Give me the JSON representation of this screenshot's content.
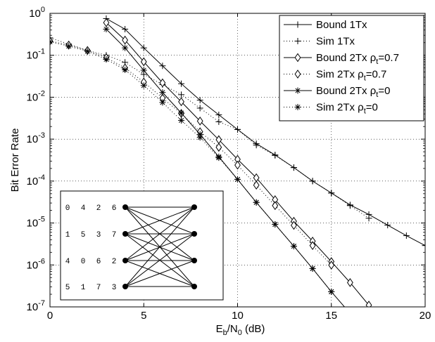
{
  "chart_data": {
    "type": "line",
    "xlabel": {
      "main": "E",
      "sub1": "b",
      "mid": "/N",
      "sub2": "0",
      "tail": " (dB)"
    },
    "ylabel": "Bit Error Rate",
    "xlim": [
      0,
      20
    ],
    "ylim": [
      1e-07,
      1
    ],
    "yscale": "log",
    "grid": true,
    "legend_position": "top-right",
    "x_ticks": [
      0,
      5,
      10,
      15,
      20
    ],
    "x_tick_labels": [
      "0",
      "5",
      "10",
      "15",
      "20"
    ],
    "y_ticks": [
      1e-07,
      1e-06,
      1e-05,
      0.0001,
      0.001,
      0.01,
      0.1,
      1
    ],
    "y_tick_labels": [
      {
        "base": "10",
        "exp": "-7"
      },
      {
        "base": "10",
        "exp": "-6"
      },
      {
        "base": "10",
        "exp": "-5"
      },
      {
        "base": "10",
        "exp": "-4"
      },
      {
        "base": "10",
        "exp": "-3"
      },
      {
        "base": "10",
        "exp": "-2"
      },
      {
        "base": "10",
        "exp": "-1"
      },
      {
        "base": "10",
        "exp": "0"
      }
    ],
    "series": [
      {
        "name": "Bound 1Tx",
        "legend": {
          "text": "Bound 1Tx"
        },
        "style": "solid",
        "marker": "plus",
        "x": [
          3,
          4,
          5,
          6,
          7,
          8,
          9,
          10,
          11,
          12,
          13,
          14,
          15,
          16,
          17,
          18,
          19,
          20
        ],
        "y": [
          0.75,
          0.42,
          0.15,
          0.056,
          0.021,
          0.0085,
          0.0038,
          0.0017,
          0.00078,
          0.00042,
          0.00021,
          0.0001,
          5.2e-05,
          2.7e-05,
          1.6e-05,
          8.9e-06,
          5e-06,
          2.9e-06
        ]
      },
      {
        "name": "Sim 1Tx",
        "legend": {
          "text": "Sim 1Tx"
        },
        "style": "dotted",
        "marker": "plus",
        "x": [
          0,
          1,
          2,
          3,
          4,
          5,
          6,
          7,
          8,
          9,
          10,
          11,
          12,
          13,
          14,
          15,
          16,
          17
        ],
        "y": [
          0.26,
          0.185,
          0.13,
          0.1,
          0.068,
          0.035,
          0.02,
          0.0115,
          0.0055,
          0.0026,
          0.0017,
          0.00072,
          0.00041,
          0.00021,
          0.0001,
          5.2e-05,
          2.6e-05,
          1.3e-05
        ]
      },
      {
        "name": "Bound 2Tx ρt=0.7",
        "legend": {
          "text": "Bound 2Tx ρ",
          "sub": "t",
          "tail": "=0.7"
        },
        "style": "solid",
        "marker": "diamond",
        "x": [
          3,
          4,
          5,
          6,
          7,
          8,
          9,
          10,
          11,
          12,
          13,
          14,
          15,
          16,
          17
        ],
        "y": [
          0.6,
          0.23,
          0.07,
          0.022,
          0.0078,
          0.0027,
          0.00097,
          0.00033,
          0.00012,
          3.6e-05,
          1.1e-05,
          3.7e-06,
          1.2e-06,
          3.8e-07,
          1.1e-07
        ]
      },
      {
        "name": "Sim 2Tx ρt=0.7",
        "legend": {
          "text": "Sim 2Tx ρ",
          "sub": "t",
          "tail": "=0.7"
        },
        "style": "dotted",
        "marker": "diamond",
        "x": [
          0,
          1,
          2,
          3,
          4,
          5,
          6,
          7,
          8,
          9,
          10,
          11,
          12,
          13,
          14,
          15
        ],
        "y": [
          0.22,
          0.175,
          0.13,
          0.088,
          0.05,
          0.023,
          0.0095,
          0.0041,
          0.0015,
          0.00064,
          0.00024,
          8e-05,
          2.6e-05,
          8.8e-06,
          2.9e-06,
          9.9e-07
        ]
      },
      {
        "name": "Bound 2Tx ρt=0",
        "legend": {
          "text": "Bound 2Tx ρ",
          "sub": "t",
          "tail": "=0"
        },
        "style": "solid",
        "marker": "asterisk",
        "x": [
          3,
          4,
          5,
          6,
          7,
          8,
          9,
          10,
          11,
          12,
          13,
          14,
          15,
          16
        ],
        "y": [
          0.42,
          0.15,
          0.044,
          0.013,
          0.0042,
          0.0013,
          0.00038,
          0.00011,
          3.1e-05,
          9.3e-06,
          2.8e-06,
          8.2e-07,
          2.3e-07,
          7e-08
        ]
      },
      {
        "name": "Sim 2Tx ρt=0",
        "legend": {
          "text": "Sim 2Tx ρ",
          "sub": "t",
          "tail": "=0"
        },
        "style": "dotted",
        "marker": "asterisk",
        "x": [
          0,
          1,
          2,
          3,
          4,
          5,
          6,
          7,
          8,
          9,
          10,
          11,
          12,
          13,
          14,
          15
        ],
        "y": [
          0.21,
          0.165,
          0.125,
          0.08,
          0.045,
          0.019,
          0.0075,
          0.0028,
          0.0011,
          0.00036,
          0.00011,
          3.1e-05,
          9.3e-06,
          2.8e-06,
          8.2e-07,
          2.3e-07
        ]
      }
    ],
    "inset": {
      "label_rows": [
        [
          "0",
          "4",
          "2",
          "6"
        ],
        [
          "1",
          "5",
          "3",
          "7"
        ],
        [
          "4",
          "0",
          "6",
          "2"
        ],
        [
          "5",
          "1",
          "7",
          "3"
        ]
      ],
      "edges": [
        [
          0,
          0
        ],
        [
          0,
          1
        ],
        [
          0,
          2
        ],
        [
          0,
          3
        ],
        [
          1,
          0
        ],
        [
          1,
          1
        ],
        [
          1,
          2
        ],
        [
          1,
          3
        ],
        [
          2,
          0
        ],
        [
          2,
          1
        ],
        [
          2,
          2
        ],
        [
          2,
          3
        ],
        [
          3,
          0
        ],
        [
          3,
          1
        ],
        [
          3,
          2
        ],
        [
          3,
          3
        ]
      ]
    },
    "colors": {
      "line": "#000000",
      "grid": "#000000",
      "background": "#ffffff"
    }
  }
}
